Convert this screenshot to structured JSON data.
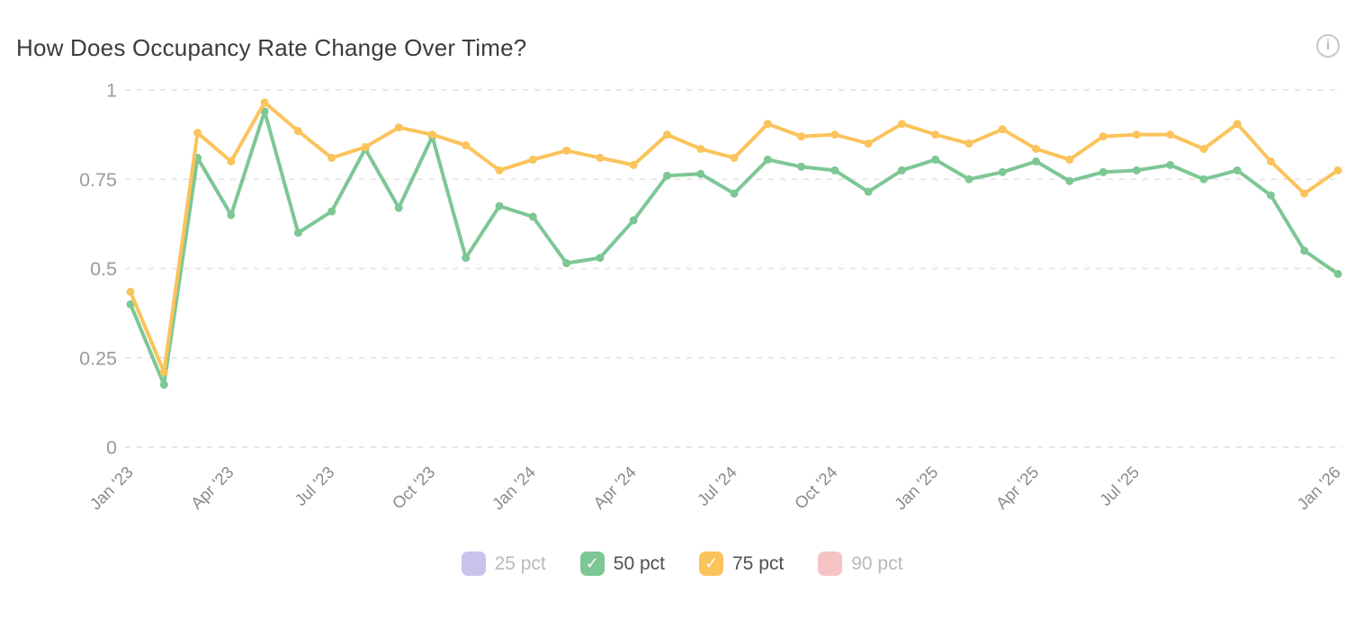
{
  "header": {
    "title": "How Does Occupancy Rate Change Over Time?",
    "info_icon_glyph": "i"
  },
  "chart_data": {
    "type": "line",
    "title": "How Does Occupancy Rate Change Over Time?",
    "xlabel": "",
    "ylabel": "",
    "ylim": [
      0,
      1
    ],
    "yticks": [
      0,
      0.25,
      0.5,
      0.75,
      1
    ],
    "ytick_labels": [
      "0",
      "0.25",
      "0.5",
      "0.75",
      "1"
    ],
    "grid": "horizontal-dashed",
    "legend_position": "bottom-center",
    "x": [
      "Jan '23",
      "Feb '23",
      "Mar '23",
      "Apr '23",
      "May '23",
      "Jun '23",
      "Jul '23",
      "Aug '23",
      "Sep '23",
      "Oct '23",
      "Nov '23",
      "Dec '23",
      "Jan '24",
      "Feb '24",
      "Mar '24",
      "Apr '24",
      "May '24",
      "Jun '24",
      "Jul '24",
      "Aug '24",
      "Sep '24",
      "Oct '24",
      "Nov '24",
      "Dec '24",
      "Jan '25",
      "Feb '25",
      "Mar '25",
      "Apr '25",
      "May '25",
      "Jun '25",
      "Jul '25",
      "Aug '25",
      "Sep '25",
      "Oct '25",
      "Nov '25",
      "Dec '25",
      "Jan '26"
    ],
    "x_ticks_shown": [
      {
        "index": 0,
        "label": "Jan '23"
      },
      {
        "index": 3,
        "label": "Apr '23"
      },
      {
        "index": 6,
        "label": "Jul '23"
      },
      {
        "index": 9,
        "label": "Oct '23"
      },
      {
        "index": 12,
        "label": "Jan '24"
      },
      {
        "index": 15,
        "label": "Apr '24"
      },
      {
        "index": 18,
        "label": "Jul '24"
      },
      {
        "index": 21,
        "label": "Oct '24"
      },
      {
        "index": 24,
        "label": "Jan '25"
      },
      {
        "index": 27,
        "label": "Apr '25"
      },
      {
        "index": 30,
        "label": "Jul '25"
      },
      {
        "index": 36,
        "label": "Jan '26"
      }
    ],
    "series": [
      {
        "name": "25 pct",
        "color": "#c7c3eb",
        "visible": false,
        "values": []
      },
      {
        "name": "50 pct",
        "color": "#7dc795",
        "visible": true,
        "values": [
          0.4,
          0.175,
          0.81,
          0.65,
          0.94,
          0.6,
          0.66,
          0.835,
          0.67,
          0.87,
          0.53,
          0.675,
          0.645,
          0.515,
          0.53,
          0.635,
          0.76,
          0.765,
          0.71,
          0.805,
          0.785,
          0.775,
          0.715,
          0.775,
          0.805,
          0.75,
          0.77,
          0.8,
          0.745,
          0.77,
          0.775,
          0.79,
          0.75,
          0.775,
          0.705,
          0.55,
          0.485
        ]
      },
      {
        "name": "75 pct",
        "color": "#fbc35b",
        "visible": true,
        "values": [
          0.435,
          0.21,
          0.88,
          0.8,
          0.965,
          0.885,
          0.81,
          0.84,
          0.895,
          0.875,
          0.845,
          0.775,
          0.805,
          0.83,
          0.81,
          0.79,
          0.875,
          0.835,
          0.81,
          0.905,
          0.87,
          0.875,
          0.85,
          0.905,
          0.875,
          0.85,
          0.89,
          0.835,
          0.805,
          0.87,
          0.875,
          0.875,
          0.835,
          0.905,
          0.8,
          0.71,
          0.775
        ]
      },
      {
        "name": "90 pct",
        "color": "#f6c3c5",
        "visible": false,
        "values": []
      }
    ],
    "colors": {
      "grid": "#e7e7e7",
      "y_tick_text": "#9b9b9b",
      "x_tick_text": "#8a8a8a",
      "legend_text_on": "#4f4f4f",
      "legend_text_off": "#b9b9b9"
    },
    "check_glyph": "✓"
  }
}
